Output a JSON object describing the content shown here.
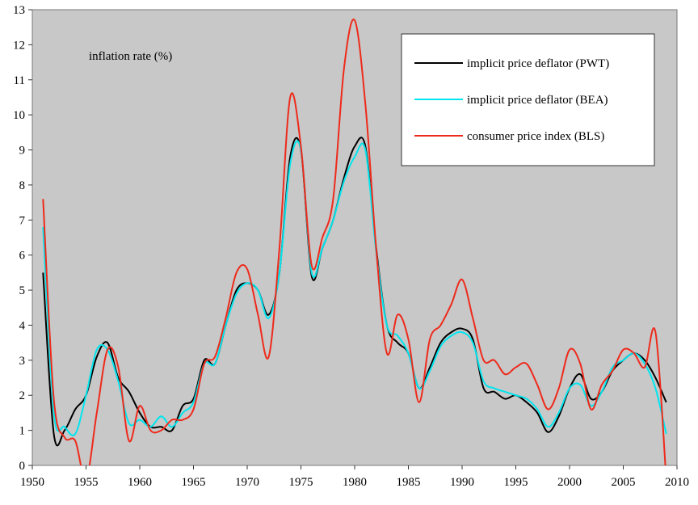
{
  "chart_data": {
    "type": "line",
    "annotation": "inflation rate (%)",
    "x": [
      1951,
      1952,
      1953,
      1954,
      1955,
      1956,
      1957,
      1958,
      1959,
      1960,
      1961,
      1962,
      1963,
      1964,
      1965,
      1966,
      1967,
      1968,
      1969,
      1970,
      1971,
      1972,
      1973,
      1974,
      1975,
      1976,
      1977,
      1978,
      1979,
      1980,
      1981,
      1982,
      1983,
      1984,
      1985,
      1986,
      1987,
      1988,
      1989,
      1990,
      1991,
      1992,
      1993,
      1994,
      1995,
      1996,
      1997,
      1998,
      1999,
      2000,
      2001,
      2002,
      2003,
      2004,
      2005,
      2006,
      2007,
      2008,
      2009
    ],
    "series": [
      {
        "name": "implicit price deflator (PWT)",
        "color": "#000000",
        "values": [
          5.5,
          0.9,
          1.0,
          1.6,
          2.0,
          3.1,
          3.5,
          2.5,
          2.1,
          1.5,
          1.1,
          1.1,
          1.0,
          1.7,
          1.9,
          3.0,
          2.9,
          4.0,
          5.0,
          5.2,
          5.0,
          4.3,
          5.5,
          8.8,
          9.0,
          5.4,
          6.2,
          7.0,
          8.2,
          9.1,
          9.1,
          6.2,
          4.0,
          3.5,
          3.2,
          2.2,
          2.8,
          3.5,
          3.8,
          3.9,
          3.6,
          2.2,
          2.1,
          1.9,
          2.0,
          1.8,
          1.5,
          0.95,
          1.4,
          2.2,
          2.6,
          1.9,
          2.1,
          2.7,
          3.0,
          3.2,
          3.0,
          2.5,
          1.8
        ]
      },
      {
        "name": "implicit price deflator (BEA)",
        "color": "#00e5ee",
        "values": [
          6.8,
          1.5,
          1.1,
          0.9,
          2.0,
          3.3,
          3.3,
          2.4,
          1.2,
          1.3,
          1.1,
          1.4,
          1.1,
          1.5,
          1.8,
          2.9,
          2.9,
          4.0,
          4.9,
          5.2,
          5.0,
          4.2,
          5.5,
          8.6,
          9.0,
          5.5,
          6.2,
          7.0,
          8.1,
          8.8,
          9.0,
          6.1,
          4.0,
          3.7,
          3.2,
          2.2,
          2.7,
          3.4,
          3.7,
          3.8,
          3.5,
          2.4,
          2.2,
          2.1,
          2.0,
          1.9,
          1.6,
          1.1,
          1.5,
          2.2,
          2.3,
          1.7,
          2.1,
          2.8,
          3.0,
          3.2,
          2.9,
          2.2,
          0.9
        ]
      },
      {
        "name": "consumer price index (BLS)",
        "color": "#ee2a1b",
        "values": [
          7.6,
          1.9,
          0.8,
          0.7,
          -0.4,
          1.5,
          3.3,
          2.8,
          0.7,
          1.7,
          1.0,
          1.0,
          1.3,
          1.3,
          1.6,
          2.9,
          3.1,
          4.2,
          5.5,
          5.6,
          4.3,
          3.1,
          6.2,
          10.5,
          9.1,
          5.7,
          6.5,
          7.6,
          11.3,
          12.7,
          10.3,
          6.2,
          3.2,
          4.3,
          3.6,
          1.8,
          3.6,
          4.0,
          4.6,
          5.3,
          4.2,
          3.0,
          3.0,
          2.6,
          2.8,
          2.9,
          2.3,
          1.6,
          2.2,
          3.3,
          2.9,
          1.6,
          2.3,
          2.7,
          3.3,
          3.2,
          2.8,
          3.8,
          -0.4
        ]
      }
    ],
    "xlim": [
      1950,
      2010
    ],
    "xticks": [
      1950,
      1955,
      1960,
      1965,
      1970,
      1975,
      1980,
      1985,
      1990,
      1995,
      2000,
      2005,
      2010
    ],
    "ylim": [
      0,
      13
    ],
    "yticks": [
      0,
      1,
      2,
      3,
      4,
      5,
      6,
      7,
      8,
      9,
      10,
      11,
      12,
      13
    ]
  }
}
